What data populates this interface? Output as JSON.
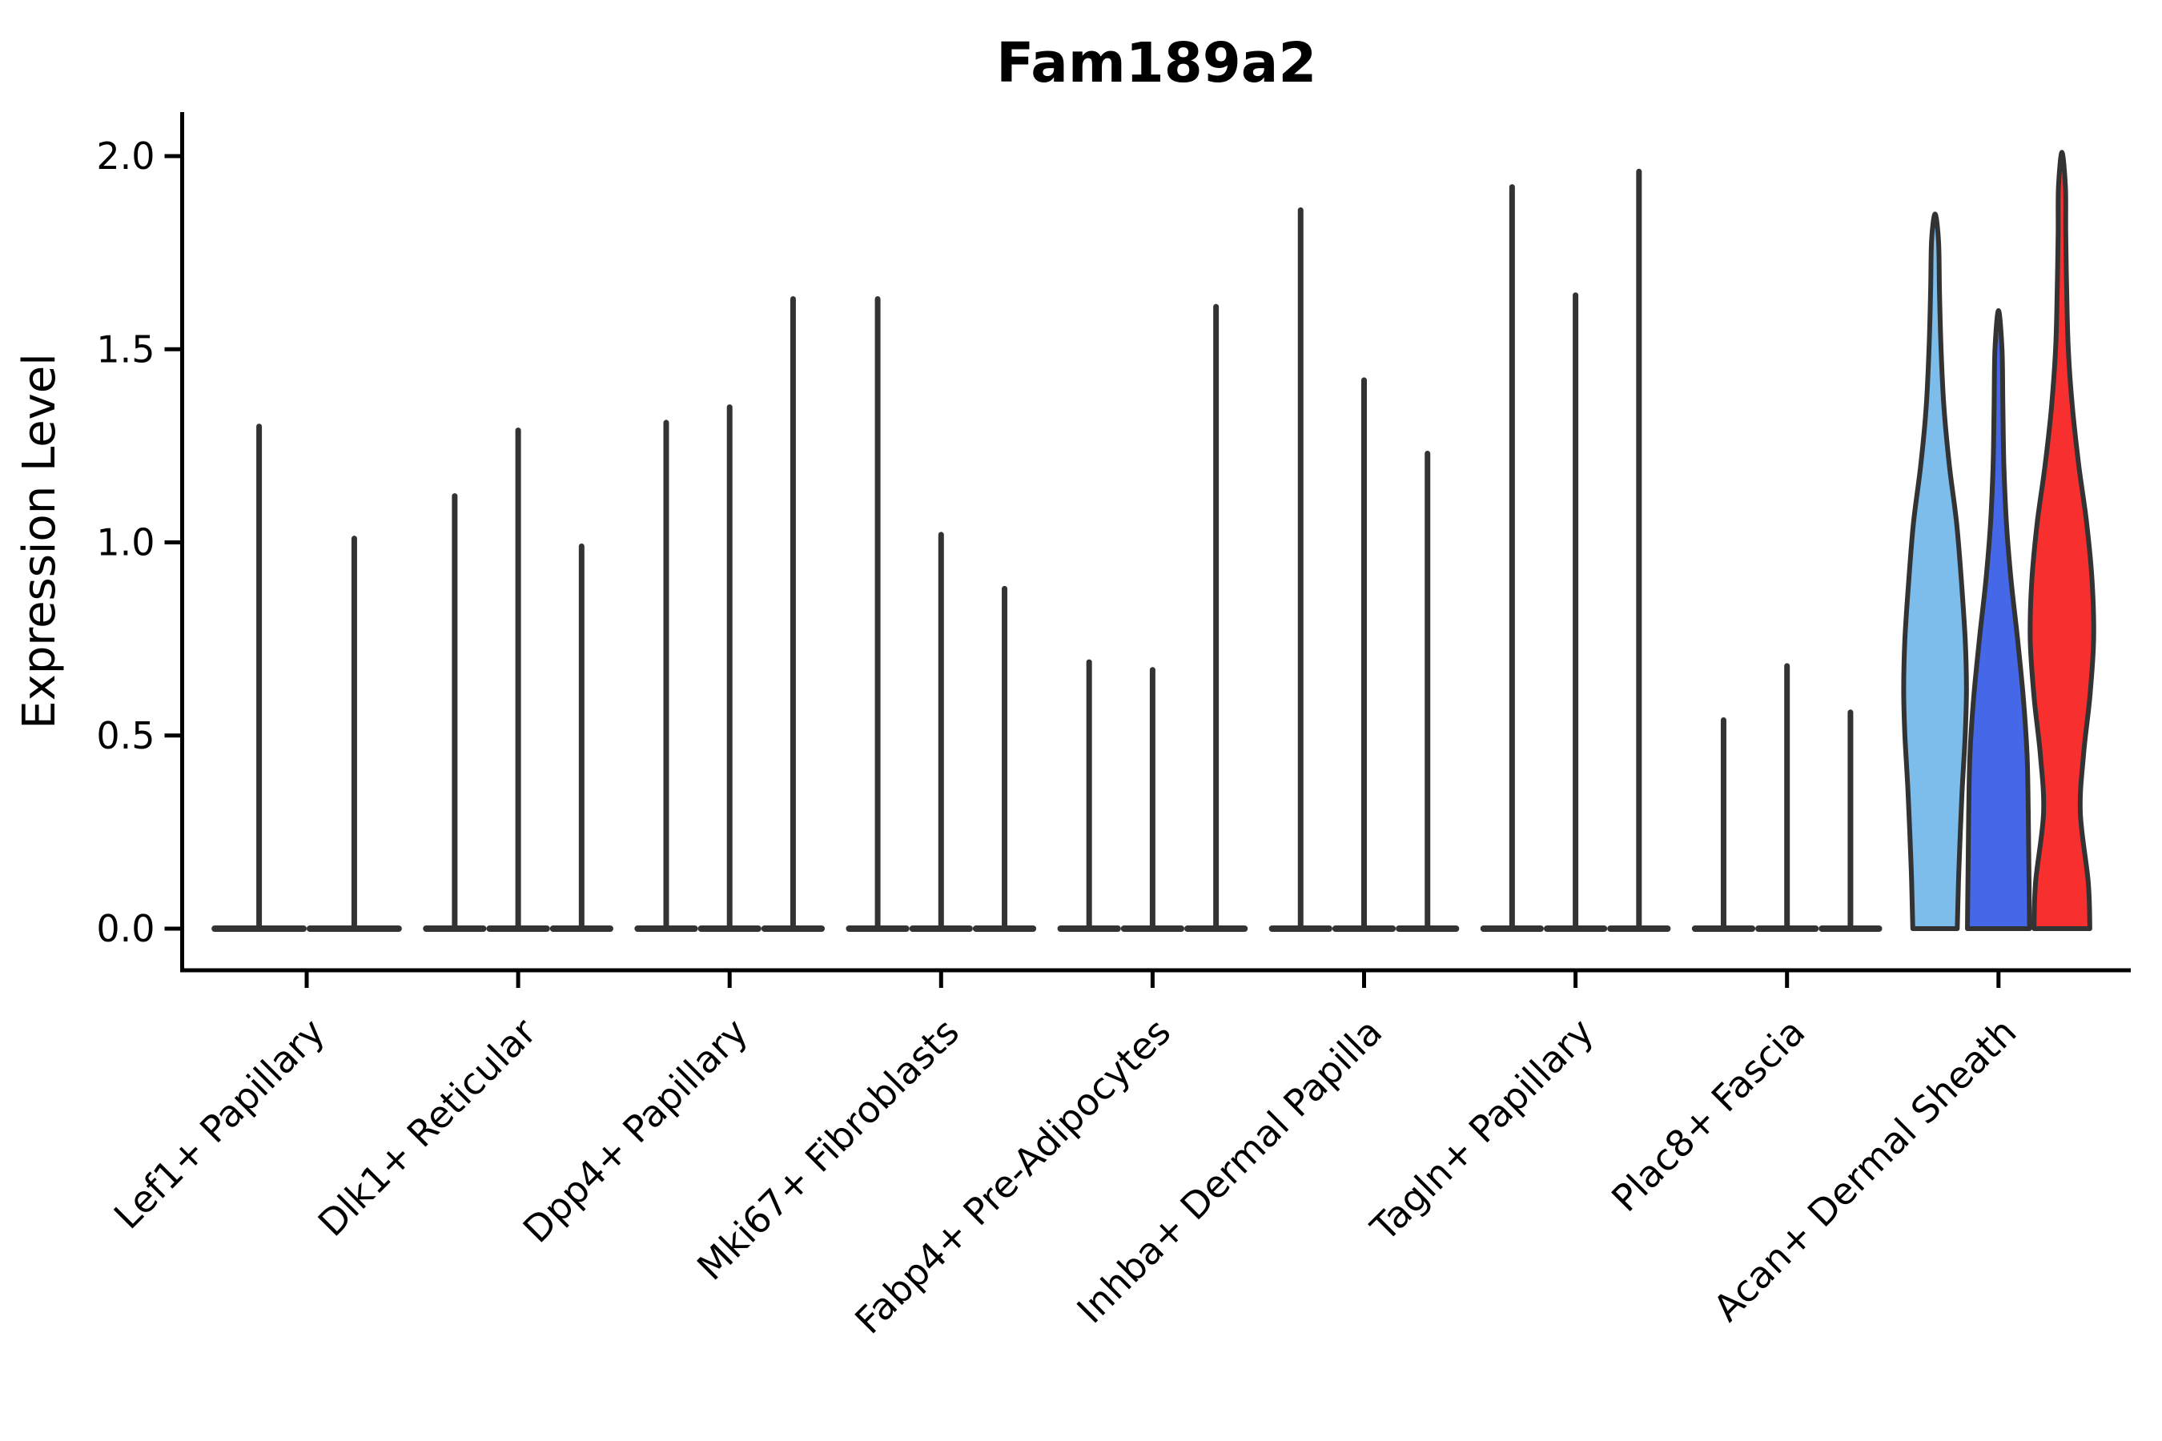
{
  "title": "Fam189a2",
  "y_axis": {
    "label": "Expression Level",
    "tick_labels": [
      "0.0",
      "0.5",
      "1.0",
      "1.5",
      "2.0"
    ]
  },
  "chart_data": {
    "type": "violin",
    "title": "Fam189a2",
    "xlabel": "",
    "ylabel": "Expression Level",
    "yticks": [
      0.0,
      0.5,
      1.0,
      1.5,
      2.0
    ],
    "ylim": [
      0,
      2.11
    ],
    "grid": false,
    "legend": "none",
    "axis_color": "#000000",
    "edge_color": "#333333",
    "background": "#ffffff",
    "description": "Violin plot of Fam189a2 expression per fibroblast cluster; most clusters show near-zero expression rendered as thin spikes, last cluster (Acan+ Dermal Sheath) shows three filled violins (light blue, royal blue, red).",
    "categories": [
      {
        "label": "Lef1+ Papillary",
        "violins": [
          {
            "peak": 1.3,
            "fill": "none"
          },
          {
            "peak": 1.01,
            "fill": "none"
          }
        ]
      },
      {
        "label": "Dlk1+ Reticular",
        "violins": [
          {
            "peak": 1.12,
            "fill": "none"
          },
          {
            "peak": 1.29,
            "fill": "none"
          },
          {
            "peak": 0.99,
            "fill": "none"
          }
        ]
      },
      {
        "label": "Dpp4+ Papillary",
        "violins": [
          {
            "peak": 1.31,
            "fill": "none"
          },
          {
            "peak": 1.35,
            "fill": "none"
          },
          {
            "peak": 1.63,
            "fill": "none"
          }
        ]
      },
      {
        "label": "Mki67+ Fibroblasts",
        "violins": [
          {
            "peak": 1.63,
            "fill": "none"
          },
          {
            "peak": 1.02,
            "fill": "none"
          },
          {
            "peak": 0.88,
            "fill": "none"
          }
        ]
      },
      {
        "label": "Fabp4+ Pre-Adipocytes",
        "violins": [
          {
            "peak": 0.69,
            "fill": "none"
          },
          {
            "peak": 0.67,
            "fill": "none"
          },
          {
            "peak": 1.61,
            "fill": "none"
          }
        ]
      },
      {
        "label": "Inhba+ Dermal Papilla",
        "violins": [
          {
            "peak": 1.86,
            "fill": "none"
          },
          {
            "peak": 1.42,
            "fill": "none"
          },
          {
            "peak": 1.23,
            "fill": "none"
          }
        ]
      },
      {
        "label": "Tagln+ Papillary",
        "violins": [
          {
            "peak": 1.92,
            "fill": "none"
          },
          {
            "peak": 1.64,
            "fill": "none"
          },
          {
            "peak": 1.96,
            "fill": "none"
          }
        ]
      },
      {
        "label": "Plac8+ Fascia",
        "violins": [
          {
            "peak": 0.54,
            "fill": "none"
          },
          {
            "peak": 0.68,
            "fill": "none"
          },
          {
            "peak": 0.56,
            "fill": "none"
          }
        ]
      },
      {
        "label": "Acan+ Dermal Sheath",
        "violins": [
          {
            "peak": 1.85,
            "fill": "#7cbdeb",
            "profile": [
              [
                0,
                0.7
              ],
              [
                0.15,
                0.75
              ],
              [
                0.35,
                0.85
              ],
              [
                0.5,
                0.95
              ],
              [
                0.62,
                0.99
              ],
              [
                0.75,
                0.95
              ],
              [
                0.9,
                0.83
              ],
              [
                1.05,
                0.68
              ],
              [
                1.2,
                0.45
              ],
              [
                1.35,
                0.28
              ],
              [
                1.5,
                0.19
              ],
              [
                1.65,
                0.14
              ],
              [
                1.78,
                0.11
              ],
              [
                1.85,
                0
              ]
            ]
          },
          {
            "peak": 1.6,
            "fill": "#4468e8",
            "profile": [
              [
                0,
                0.98
              ],
              [
                0.15,
                0.96
              ],
              [
                0.3,
                0.94
              ],
              [
                0.45,
                0.9
              ],
              [
                0.6,
                0.78
              ],
              [
                0.75,
                0.6
              ],
              [
                0.9,
                0.4
              ],
              [
                1.05,
                0.25
              ],
              [
                1.2,
                0.17
              ],
              [
                1.35,
                0.14
              ],
              [
                1.5,
                0.11
              ],
              [
                1.6,
                0
              ]
            ]
          },
          {
            "peak": 2.01,
            "fill": "#f82f2f",
            "profile": [
              [
                0,
                0.88
              ],
              [
                0.12,
                0.83
              ],
              [
                0.3,
                0.58
              ],
              [
                0.45,
                0.68
              ],
              [
                0.6,
                0.88
              ],
              [
                0.75,
                1.0
              ],
              [
                0.9,
                0.95
              ],
              [
                1.05,
                0.78
              ],
              [
                1.2,
                0.53
              ],
              [
                1.35,
                0.33
              ],
              [
                1.5,
                0.2
              ],
              [
                1.65,
                0.15
              ],
              [
                1.8,
                0.12
              ],
              [
                1.92,
                0.11
              ],
              [
                2.01,
                0
              ]
            ]
          }
        ]
      }
    ]
  }
}
